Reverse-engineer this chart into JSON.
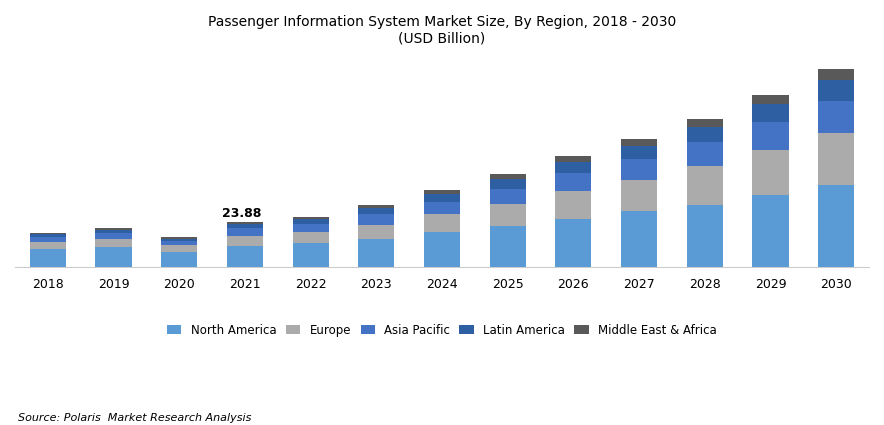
{
  "years": [
    2018,
    2019,
    2020,
    2021,
    2022,
    2023,
    2024,
    2025,
    2026,
    2027,
    2028,
    2029,
    2030
  ],
  "regions": [
    "North America",
    "Europe",
    "Asia Pacific",
    "Latin America",
    "Middle East & Africa"
  ],
  "colors": [
    "#5B9BD5",
    "#ABABAB",
    "#4472C4",
    "#2E5FA3",
    "#595959"
  ],
  "data": {
    "North America": [
      9.5,
      10.8,
      8.0,
      11.2,
      12.5,
      15.0,
      18.5,
      21.5,
      25.5,
      29.5,
      33.0,
      38.0,
      43.5
    ],
    "Europe": [
      3.8,
      4.2,
      3.5,
      5.5,
      6.0,
      7.5,
      9.5,
      12.0,
      14.5,
      16.5,
      20.5,
      24.0,
      27.5
    ],
    "Asia Pacific": [
      2.5,
      2.8,
      2.2,
      3.8,
      4.2,
      5.5,
      6.5,
      8.0,
      9.5,
      11.0,
      12.5,
      14.5,
      17.0
    ],
    "Latin America": [
      1.5,
      1.8,
      1.4,
      2.2,
      2.5,
      3.2,
      4.0,
      5.0,
      6.0,
      7.0,
      8.0,
      9.5,
      11.0
    ],
    "Middle East & Africa": [
      0.88,
      1.0,
      0.78,
      1.18,
      1.3,
      1.68,
      2.1,
      2.6,
      3.1,
      3.6,
      4.1,
      4.9,
      5.7
    ]
  },
  "annotation_year": 2021,
  "annotation_text": "23.88",
  "title_line1": "Passenger Information System Market Size, By Region, 2018 - 2030",
  "title_line2": "(USD Billion)",
  "source_text": "Source: Polaris  Market Research Analysis",
  "ylim": [
    0,
    110
  ],
  "bar_width": 0.55
}
